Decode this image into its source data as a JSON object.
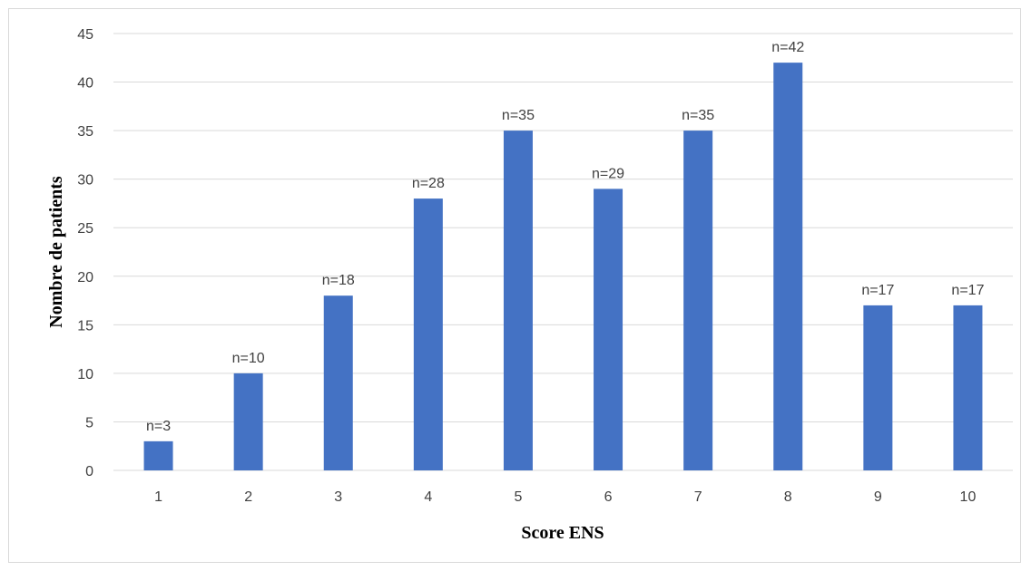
{
  "chart_data": {
    "type": "bar",
    "categories": [
      "1",
      "2",
      "3",
      "4",
      "5",
      "6",
      "7",
      "8",
      "9",
      "10"
    ],
    "values": [
      3,
      10,
      18,
      28,
      35,
      29,
      35,
      42,
      17,
      17
    ],
    "data_labels": [
      "n=3",
      "n=10",
      "n=18",
      "n=28",
      "n=35",
      "n=29",
      "n=35",
      "n=42",
      "n=17",
      "n=17"
    ],
    "yticks": [
      "0",
      "5",
      "10",
      "15",
      "20",
      "25",
      "30",
      "35",
      "40",
      "45"
    ],
    "xlabel": "Score ENS",
    "ylabel": "Nombre de patients",
    "ylim": [
      0,
      45
    ],
    "grid": true,
    "bar_color": "#4472c4",
    "grid_color": "#d9d9d9"
  }
}
